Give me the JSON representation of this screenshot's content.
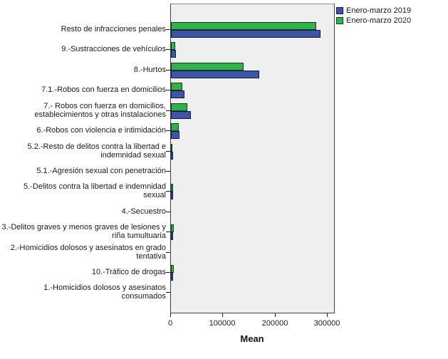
{
  "chart_data": {
    "type": "bar",
    "orientation": "horizontal",
    "xlabel": "Mean",
    "legend_position": "top-right",
    "grid": false,
    "plot_background": "#efefef",
    "x_axis": {
      "min": 0,
      "max": 315000,
      "tick_values": [
        0,
        100000,
        200000,
        300000
      ],
      "tick_labels": [
        "0",
        "100000",
        "200000",
        "300000"
      ]
    },
    "categories": [
      "Resto de infracciones penales",
      "9.-Sustracciones de vehículos",
      "8.-Hurtos",
      "7.1.-Robos con fuerza en domicilios",
      "7.- Robos con fuerza en domicilios, establecimientos y otras instalaciones",
      "6.-Robos con violencia e intimidación",
      "5.2.-Resto de delitos contra la libertad e indemnidad sexual",
      "5.1.-Agresión sexual con penetración",
      "5.-Delitos contra la libertad e indemnidad sexual",
      "4.-Secuestro",
      "3.-Delitos graves y menos graves de lesiones y riña tumultuaria",
      "2.-Homicidios dolosos y asesinatos en grado tentativa",
      "10.-Tráfico de drogas",
      "1.-Homicidios dolosos y asesinatos consumados"
    ],
    "series": [
      {
        "name": "Enero-marzo 2019",
        "color": "#4054a5",
        "border_color": "#121c4a",
        "values": [
          287000,
          9500,
          169000,
          26000,
          38000,
          16800,
          3500,
          450,
          3900,
          30,
          4500,
          60,
          4200,
          80
        ]
      },
      {
        "name": "Enero-marzo 2020",
        "color": "#2fb24a",
        "border_color": "#143a1e",
        "values": [
          278000,
          8000,
          139500,
          22000,
          32000,
          15000,
          3000,
          400,
          3450,
          25,
          5000,
          60,
          5000,
          70
        ]
      }
    ]
  }
}
